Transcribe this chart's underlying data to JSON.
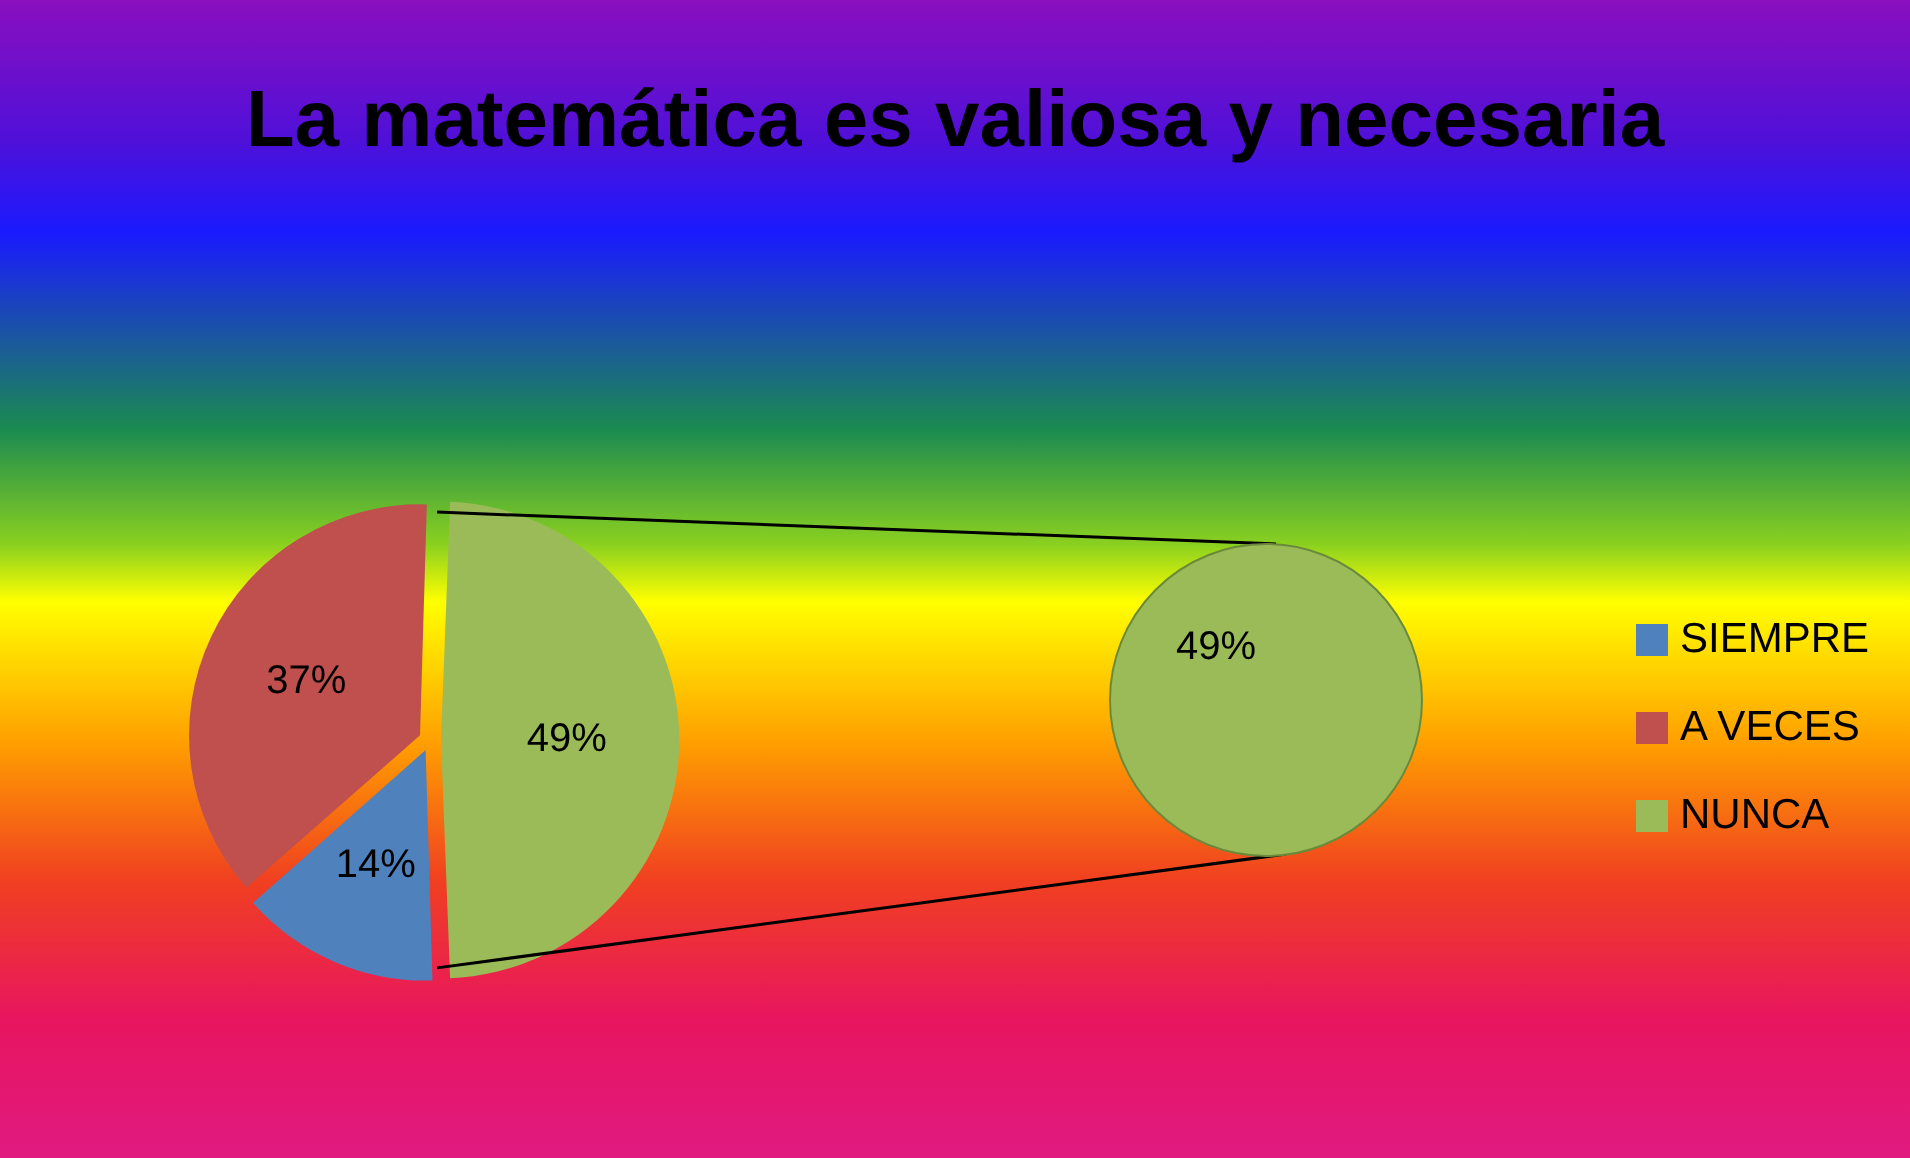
{
  "chart_data": {
    "type": "pie",
    "title": "La matemática es valiosa y necesaria",
    "categories": [
      "SIEMPRE",
      "A VECES",
      "NUNCA"
    ],
    "values": [
      14,
      37,
      49
    ],
    "colors": [
      "#4f81bd",
      "#c0504d",
      "#9bbb59"
    ],
    "value_labels": [
      "14%",
      "37%",
      "49%"
    ],
    "legend": "right"
  }
}
